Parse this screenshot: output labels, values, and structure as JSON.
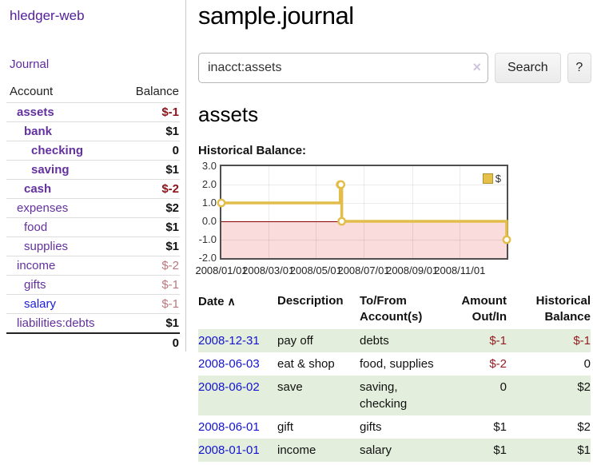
{
  "colors": {
    "accent_purple": "#5b2a9d",
    "link_blue": "#1717d1",
    "negative_dark_red": "#8e1219",
    "negative_light_red": "#bc777c",
    "row_green": "#e3efdc",
    "chart_line_gold": "#e3bd4a",
    "chart_negative_region": "#fadcdc",
    "chart_zero_line": "#8b0000"
  },
  "sidebar": {
    "brand": "hledger-web",
    "journal_label": "Journal",
    "accounts": {
      "header_account": "Account",
      "header_balance": "Balance",
      "rows": [
        {
          "name": "assets",
          "depth": 0,
          "bold": true,
          "balance": "$-1",
          "balance_class": "neg-bold"
        },
        {
          "name": "bank",
          "depth": 1,
          "bold": true,
          "balance": "$1",
          "balance_class": "bold"
        },
        {
          "name": "checking",
          "depth": 2,
          "bold": true,
          "balance": "0",
          "balance_class": "bold"
        },
        {
          "name": "saving",
          "depth": 2,
          "bold": true,
          "balance": "$1",
          "balance_class": "bold"
        },
        {
          "name": "cash",
          "depth": 1,
          "bold": true,
          "balance": "$-2",
          "balance_class": "neg-bold"
        },
        {
          "name": "expenses",
          "depth": 0,
          "bold": false,
          "balance": "$2",
          "balance_class": "bold"
        },
        {
          "name": "food",
          "depth": 1,
          "bold": false,
          "balance": "$1",
          "balance_class": "bold"
        },
        {
          "name": "supplies",
          "depth": 1,
          "bold": false,
          "balance": "$1",
          "balance_class": "bold"
        },
        {
          "name": "income",
          "depth": 0,
          "bold": false,
          "balance": "$-2",
          "balance_class": "neg"
        },
        {
          "name": "gifts",
          "depth": 1,
          "bold": false,
          "balance": "$-1",
          "balance_class": "neg"
        },
        {
          "name": "salary",
          "depth": 1,
          "bold": false,
          "blue": true,
          "balance": "$-1",
          "balance_class": "neg"
        },
        {
          "name": "liabilities:debts",
          "depth": 0,
          "bold": false,
          "balance": "$1",
          "balance_class": "bold"
        }
      ],
      "total": "0"
    }
  },
  "main": {
    "title": "sample.journal",
    "search": {
      "value": "inacct:assets",
      "clear_icon": "×",
      "button_label": "Search",
      "help_label": "?"
    },
    "account_heading": "assets",
    "chart_title": "Historical Balance:"
  },
  "chart_data": {
    "type": "line",
    "step": true,
    "title": "Historical Balance",
    "legend": {
      "label": "$",
      "position": "top-right"
    },
    "x_range": [
      "2008-01-01",
      "2008-12-31"
    ],
    "ylim": [
      -2,
      3
    ],
    "yticks": [
      "3.0",
      "2.0",
      "1.0",
      "0.0",
      "-1.0",
      "-2.0"
    ],
    "xtick_dates": [
      "2008-01-01",
      "2008-03-01",
      "2008-05-01",
      "2008-07-01",
      "2008-09-01",
      "2008-11-01"
    ],
    "xtick_labels": [
      "2008/01/01",
      "2008/03/01",
      "2008/05/01",
      "2008/07/01",
      "2008/09/01",
      "2008/11/01"
    ],
    "negative_region_below": 0,
    "series": [
      {
        "name": "$",
        "points": [
          {
            "date": "2008-01-01",
            "value": 1
          },
          {
            "date": "2008-06-01",
            "value": 2
          },
          {
            "date": "2008-06-02",
            "value": 2
          },
          {
            "date": "2008-06-03",
            "value": 0
          },
          {
            "date": "2008-12-31",
            "value": -1
          }
        ]
      }
    ]
  },
  "register": {
    "headers": {
      "date": "Date",
      "sort_icon": "∧",
      "description": "Description",
      "account_line1": "To/From",
      "account_line2": "Account(s)",
      "amount_line1": "Amount",
      "amount_line2": "Out/In",
      "balance_line1": "Historical",
      "balance_line2": "Balance"
    },
    "rows": [
      {
        "date": "2008-12-31",
        "description": "pay off",
        "accounts": "debts",
        "amount": "$-1",
        "balance": "$-1",
        "shaded": true
      },
      {
        "date": "2008-06-03",
        "description": "eat & shop",
        "accounts": "food, supplies",
        "amount": "$-2",
        "balance": "0",
        "shaded": false
      },
      {
        "date": "2008-06-02",
        "description": "save",
        "accounts": "saving, checking",
        "amount": "0",
        "balance": "$2",
        "shaded": true
      },
      {
        "date": "2008-06-01",
        "description": "gift",
        "accounts": "gifts",
        "amount": "$1",
        "balance": "$2",
        "shaded": false
      },
      {
        "date": "2008-01-01",
        "description": "income",
        "accounts": "salary",
        "amount": "$1",
        "balance": "$1",
        "shaded": true
      }
    ]
  }
}
